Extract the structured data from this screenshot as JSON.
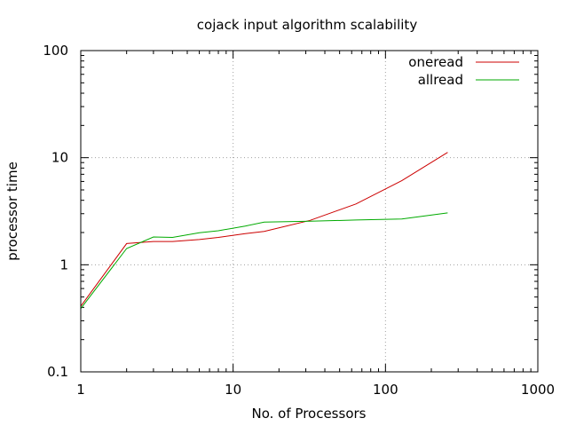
{
  "chart_data": {
    "type": "line",
    "title": "cojack input algorithm scalability",
    "xlabel": "No. of Processors",
    "ylabel": "processor time",
    "xscale": "log",
    "yscale": "log",
    "xlim": [
      1,
      1000
    ],
    "ylim": [
      0.1,
      100
    ],
    "xticks": [
      {
        "value": 1,
        "label": "1"
      },
      {
        "value": 10,
        "label": "10"
      },
      {
        "value": 100,
        "label": "100"
      },
      {
        "value": 1000,
        "label": "1000"
      }
    ],
    "yticks": [
      {
        "value": 0.1,
        "label": "0.1"
      },
      {
        "value": 1,
        "label": "1"
      },
      {
        "value": 10,
        "label": "10"
      },
      {
        "value": 100,
        "label": "100"
      }
    ],
    "grid": true,
    "legend_position": "top-right",
    "series": [
      {
        "name": "oneread",
        "color": "#cc0000",
        "x": [
          1,
          2,
          3,
          4,
          6,
          8,
          12,
          16,
          32,
          64,
          128,
          256
        ],
        "y": [
          0.41,
          1.58,
          1.65,
          1.65,
          1.72,
          1.8,
          1.95,
          2.05,
          2.6,
          3.7,
          6.1,
          11.2
        ]
      },
      {
        "name": "allread",
        "color": "#00aa00",
        "x": [
          1,
          2,
          3,
          4,
          6,
          8,
          12,
          16,
          32,
          64,
          128,
          256
        ],
        "y": [
          0.39,
          1.42,
          1.82,
          1.8,
          1.99,
          2.08,
          2.3,
          2.5,
          2.55,
          2.62,
          2.68,
          3.05
        ]
      }
    ]
  }
}
